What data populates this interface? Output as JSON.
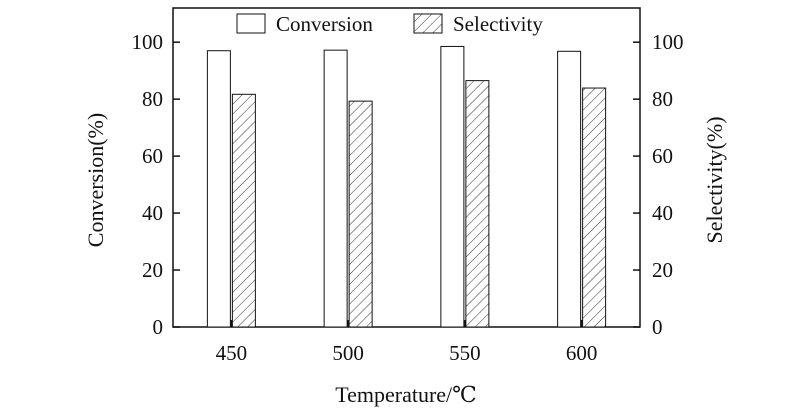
{
  "chart_data": {
    "type": "bar",
    "title": "",
    "xlabel": "Temperature/℃",
    "ylabel": "Conversion(%)",
    "ylabel_right": "Selectivity(%)",
    "categories": [
      "450",
      "500",
      "550",
      "600"
    ],
    "series": [
      {
        "name": "Conversion",
        "values": [
          97,
          97.2,
          98.5,
          96.8
        ],
        "pattern": "solid"
      },
      {
        "name": "Selectivity",
        "values": [
          81.7,
          79.3,
          86.5,
          83.9
        ],
        "pattern": "hatched"
      }
    ],
    "ylim": [
      0,
      112
    ],
    "ylim_right": [
      0,
      112
    ],
    "yticks": [
      "0",
      "20",
      "40",
      "60",
      "80",
      "100"
    ],
    "yticks_right": [
      "0",
      "20",
      "40",
      "60",
      "80",
      "100"
    ],
    "legend_position": "top-center",
    "grid": false
  }
}
